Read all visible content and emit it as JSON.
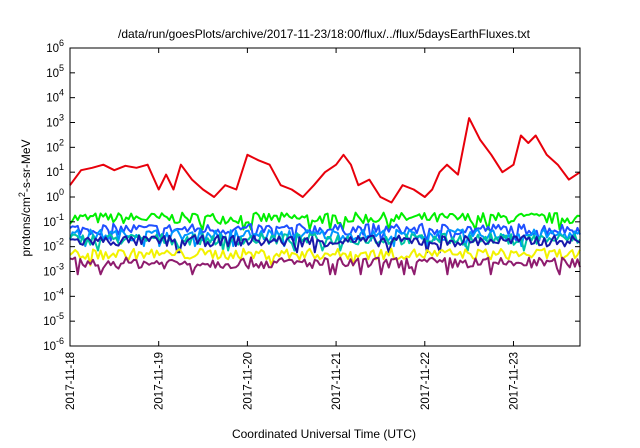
{
  "chart_data": {
    "type": "line",
    "title": "/data/run/goesPlots/archive/2017-11-23/18:00/flux/../flux/5daysEarthFluxes.txt",
    "xlabel": "Coordinated Universal Time (UTC)",
    "ylabel": {
      "base": "protons/cm",
      "sup": "2",
      "rest": "-s-sr-MeV"
    },
    "yscale": "log",
    "ylim": [
      1e-06,
      1000000.0
    ],
    "xlim": [
      "2017-11-18T00:00",
      "2017-11-23T18:00"
    ],
    "grid": false,
    "legend": "none",
    "x_ticks": [
      "2017-11-18",
      "2017-11-19",
      "2017-11-20",
      "2017-11-21",
      "2017-11-22",
      "2017-11-23"
    ],
    "y_ticks": [
      {
        "value": 1e-06,
        "base": "10",
        "exp": "-6"
      },
      {
        "value": 1e-05,
        "base": "10",
        "exp": "-5"
      },
      {
        "value": 0.0001,
        "base": "10",
        "exp": "-4"
      },
      {
        "value": 0.001,
        "base": "10",
        "exp": "-3"
      },
      {
        "value": 0.01,
        "base": "10",
        "exp": "-2"
      },
      {
        "value": 0.1,
        "base": "10",
        "exp": "-1"
      },
      {
        "value": 1,
        "base": "10",
        "exp": "0"
      },
      {
        "value": 10,
        "base": "10",
        "exp": "1"
      },
      {
        "value": 100,
        "base": "10",
        "exp": "2"
      },
      {
        "value": 1000,
        "base": "10",
        "exp": "3"
      },
      {
        "value": 10000.0,
        "base": "10",
        "exp": "4"
      },
      {
        "value": 100000.0,
        "base": "10",
        "exp": "5"
      },
      {
        "value": 1000000.0,
        "base": "10",
        "exp": "6"
      }
    ],
    "series": [
      {
        "color": "#e8000b",
        "points": [
          [
            "2017-11-18T00:00",
            3
          ],
          [
            "2017-11-18T03:00",
            12
          ],
          [
            "2017-11-18T06:00",
            15
          ],
          [
            "2017-11-18T09:00",
            20
          ],
          [
            "2017-11-18T12:00",
            12
          ],
          [
            "2017-11-18T15:00",
            18
          ],
          [
            "2017-11-18T18:00",
            15
          ],
          [
            "2017-11-18T21:00",
            20
          ],
          [
            "2017-11-19T00:00",
            2
          ],
          [
            "2017-11-19T02:00",
            8
          ],
          [
            "2017-11-19T04:00",
            2
          ],
          [
            "2017-11-19T06:00",
            20
          ],
          [
            "2017-11-19T09:00",
            5
          ],
          [
            "2017-11-19T12:00",
            2
          ],
          [
            "2017-11-19T15:00",
            1
          ],
          [
            "2017-11-19T18:00",
            3
          ],
          [
            "2017-11-19T21:00",
            2
          ],
          [
            "2017-11-20T00:00",
            50
          ],
          [
            "2017-11-20T03:00",
            30
          ],
          [
            "2017-11-20T06:00",
            20
          ],
          [
            "2017-11-20T09:00",
            3
          ],
          [
            "2017-11-20T12:00",
            2
          ],
          [
            "2017-11-20T15:00",
            1
          ],
          [
            "2017-11-20T18:00",
            3
          ],
          [
            "2017-11-20T21:00",
            10
          ],
          [
            "2017-11-21T00:00",
            20
          ],
          [
            "2017-11-21T02:00",
            50
          ],
          [
            "2017-11-21T04:00",
            20
          ],
          [
            "2017-11-21T06:00",
            3
          ],
          [
            "2017-11-21T09:00",
            5
          ],
          [
            "2017-11-21T12:00",
            1
          ],
          [
            "2017-11-21T15:00",
            0.6
          ],
          [
            "2017-11-21T18:00",
            3
          ],
          [
            "2017-11-21T21:00",
            2
          ],
          [
            "2017-11-22T00:00",
            1
          ],
          [
            "2017-11-22T02:00",
            2
          ],
          [
            "2017-11-22T04:00",
            10
          ],
          [
            "2017-11-22T06:00",
            20
          ],
          [
            "2017-11-22T09:00",
            8
          ],
          [
            "2017-11-22T12:00",
            1500
          ],
          [
            "2017-11-22T15:00",
            200
          ],
          [
            "2017-11-22T18:00",
            50
          ],
          [
            "2017-11-22T21:00",
            10
          ],
          [
            "2017-11-23T00:00",
            20
          ],
          [
            "2017-11-23T02:00",
            300
          ],
          [
            "2017-11-23T04:00",
            150
          ],
          [
            "2017-11-23T06:00",
            300
          ],
          [
            "2017-11-23T09:00",
            50
          ],
          [
            "2017-11-23T12:00",
            20
          ],
          [
            "2017-11-23T15:00",
            5
          ],
          [
            "2017-11-23T18:00",
            10
          ]
        ]
      },
      {
        "color": "#00ee00",
        "level": 0.14
      },
      {
        "color": "#1f4fff",
        "level": 0.05
      },
      {
        "color": "#0095ff",
        "level": 0.03
      },
      {
        "color": "#00c4a4",
        "level": 0.02
      },
      {
        "color": "#1818aa",
        "level": 0.017
      },
      {
        "color": "#f2f200",
        "level": 0.005
      },
      {
        "color": "#8e1c6e",
        "level": 0.0022
      }
    ]
  }
}
